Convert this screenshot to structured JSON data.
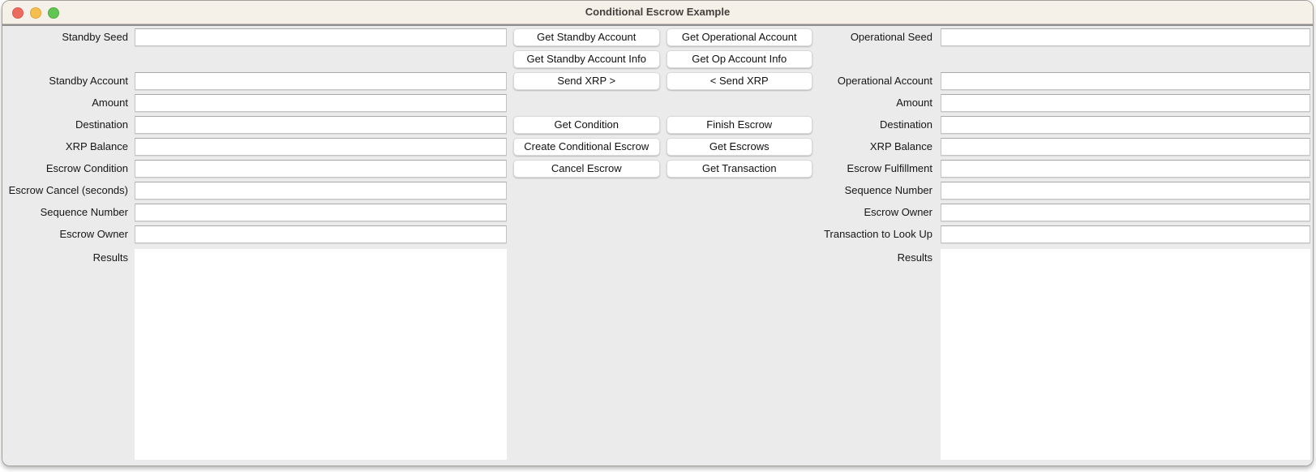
{
  "window": {
    "title": "Conditional Escrow Example"
  },
  "titlebar": {
    "close_color": "#ed6a5e",
    "minimize_color": "#f5bf4f",
    "zoom_color": "#61c554",
    "bg_color": "#f6f1e8"
  },
  "colors": {
    "content_bg": "#ebebeb",
    "field_border": "#c4c4c4",
    "button_bg": "#ffffff"
  },
  "left_panel": {
    "fields": [
      {
        "label": "Standby Seed",
        "value": ""
      },
      {
        "label": "Standby Account",
        "value": ""
      },
      {
        "label": "Amount",
        "value": ""
      },
      {
        "label": "Destination",
        "value": ""
      },
      {
        "label": "XRP Balance",
        "value": ""
      },
      {
        "label": "Escrow Condition",
        "value": ""
      },
      {
        "label": "Escrow Cancel (seconds)",
        "value": ""
      },
      {
        "label": "Sequence Number",
        "value": ""
      },
      {
        "label": "Escrow Owner",
        "value": ""
      }
    ],
    "results_label": "Results",
    "results_value": ""
  },
  "buttons": {
    "rows": [
      {
        "left": "Get Standby Account",
        "right": "Get Operational Account"
      },
      {
        "left": "Get Standby Account Info",
        "right": "Get Op Account Info"
      },
      {
        "left": "Send XRP >",
        "right": "< Send XRP"
      },
      {
        "left": "Get Condition",
        "right": "Finish Escrow"
      },
      {
        "left": "Create Conditional Escrow",
        "right": "Get Escrows"
      },
      {
        "left": "Cancel Escrow",
        "right": "Get Transaction"
      }
    ]
  },
  "right_panel": {
    "fields": [
      {
        "label": "Operational Seed",
        "value": ""
      },
      {
        "label": "Operational Account",
        "value": ""
      },
      {
        "label": "Amount",
        "value": ""
      },
      {
        "label": "Destination",
        "value": ""
      },
      {
        "label": "XRP Balance",
        "value": ""
      },
      {
        "label": "Escrow Fulfillment",
        "value": ""
      },
      {
        "label": "Sequence Number",
        "value": ""
      },
      {
        "label": "Escrow Owner",
        "value": ""
      },
      {
        "label": "Transaction to Look Up",
        "value": ""
      }
    ],
    "results_label": "Results",
    "results_value": ""
  }
}
